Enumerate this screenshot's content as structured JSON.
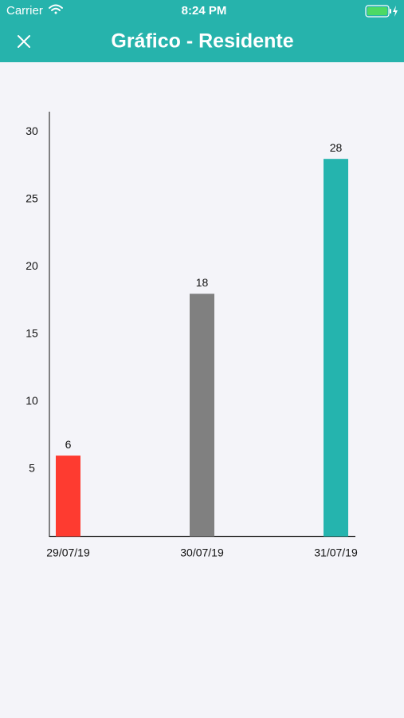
{
  "status_bar": {
    "carrier": "Carrier",
    "time": "8:24 PM"
  },
  "header": {
    "title": "Gráfico - Residente"
  },
  "chart_data": {
    "type": "bar",
    "categories": [
      "29/07/19",
      "30/07/19",
      "31/07/19"
    ],
    "values": [
      6,
      18,
      28
    ],
    "colors": [
      "#fe3b30",
      "#808080",
      "#25b4ae"
    ],
    "ylim": [
      0,
      31.5
    ],
    "yticks": [
      5,
      10,
      15,
      20,
      25,
      30
    ]
  }
}
